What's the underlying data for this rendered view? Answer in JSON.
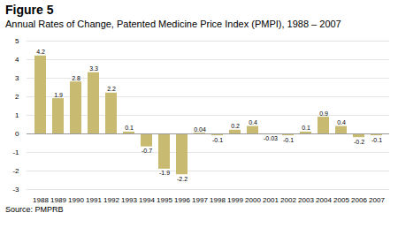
{
  "chart_data": {
    "type": "bar",
    "title": "Figure 5",
    "subtitle": "Annual Rates of Change, Patented Medicine Price Index (PMPI), 1988 – 2007",
    "source": "Source: PMPRB",
    "categories": [
      "1988",
      "1989",
      "1990",
      "1991",
      "1992",
      "1993",
      "1994",
      "1995",
      "1996",
      "1997",
      "1998",
      "1999",
      "2000",
      "2001",
      "2002",
      "2003",
      "2004",
      "2005",
      "2006",
      "2007"
    ],
    "values": [
      4.2,
      1.9,
      2.8,
      3.3,
      2.2,
      0.1,
      -0.7,
      -1.9,
      -2.2,
      0.04,
      -0.1,
      0.2,
      0.4,
      -0.03,
      -0.1,
      0.1,
      0.9,
      0.4,
      -0.2,
      -0.1
    ],
    "color": "#C9BA72",
    "ylim": [
      -3,
      5
    ],
    "yticks": [
      -3,
      -2,
      -1,
      0,
      1,
      2,
      3,
      4,
      5
    ],
    "grid": true,
    "data_labels": true
  }
}
